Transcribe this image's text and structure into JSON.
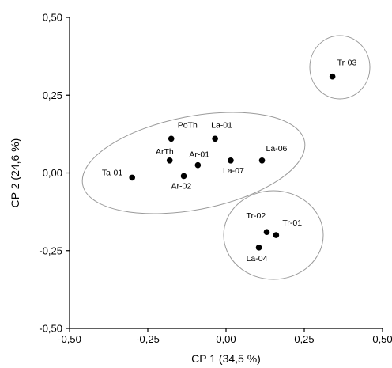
{
  "chart_data": {
    "type": "scatter",
    "xlabel": "CP 1 (34,5 %)",
    "ylabel": "CP 2 (24,6 %)",
    "xlim": [
      -0.5,
      0.5
    ],
    "ylim": [
      -0.5,
      0.5
    ],
    "x_ticks": [
      "-0,50",
      "-0,25",
      "0,00",
      "0,25",
      "0,50"
    ],
    "y_ticks": [
      "-0,50",
      "-0,25",
      "0,00",
      "0,25",
      "0,50"
    ],
    "grid": false,
    "points": [
      {
        "label": "Ta-01",
        "x": -0.3,
        "y": -0.015
      },
      {
        "label": "ArTh",
        "x": -0.18,
        "y": 0.04
      },
      {
        "label": "PoTh",
        "x": -0.175,
        "y": 0.11
      },
      {
        "label": "Ar-02",
        "x": -0.135,
        "y": -0.01
      },
      {
        "label": "Ar-01",
        "x": -0.09,
        "y": 0.025
      },
      {
        "label": "La-01",
        "x": -0.035,
        "y": 0.11
      },
      {
        "label": "La-07",
        "x": 0.015,
        "y": 0.04
      },
      {
        "label": "La-06",
        "x": 0.115,
        "y": 0.04
      },
      {
        "label": "Tr-02",
        "x": 0.13,
        "y": -0.19
      },
      {
        "label": "Tr-01",
        "x": 0.16,
        "y": -0.2
      },
      {
        "label": "La-04",
        "x": 0.105,
        "y": -0.24
      },
      {
        "label": "Tr-03",
        "x": 0.34,
        "y": 0.31
      }
    ],
    "groups": [
      {
        "members": [
          "Ta-01",
          "ArTh",
          "PoTh",
          "Ar-02",
          "Ar-01",
          "La-01",
          "La-07",
          "La-06"
        ]
      },
      {
        "members": [
          "Tr-02",
          "Tr-01",
          "La-04"
        ]
      },
      {
        "members": [
          "Tr-03"
        ]
      }
    ]
  }
}
